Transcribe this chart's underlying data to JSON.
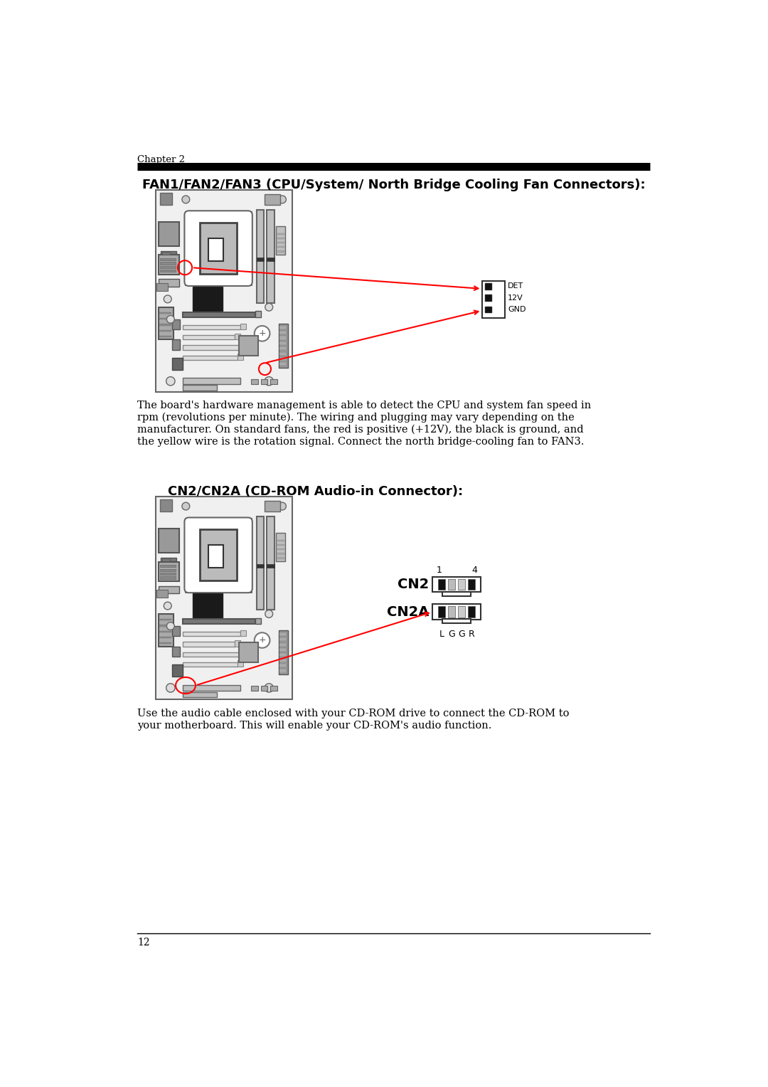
{
  "page_bg": "#ffffff",
  "chapter_label": "Chapter 2",
  "page_number": "12",
  "section1_title": "FAN1/FAN2/FAN3 (CPU/System/ North Bridge Cooling Fan Connectors):",
  "section2_title": "CN2/CN2A (CD-ROM Audio-in Connector):",
  "para1_lines": [
    "The board's hardware management is able to detect the CPU and system fan speed in",
    "rpm (revolutions per minute). The wiring and plugging may vary depending on the",
    "manufacturer. On standard fans, the red is positive (+12V), the black is ground, and",
    "the yellow wire is the rotation signal. Connect the north bridge-cooling fan to FAN3."
  ],
  "para2_lines": [
    "Use the audio cable enclosed with your CD-ROM drive to connect the CD-ROM to",
    "your motherboard. This will enable your CD-ROM's audio function."
  ],
  "fan_connector_labels": [
    "DET",
    "12V",
    "GND"
  ],
  "cn_labels": [
    "L",
    "G",
    "G",
    "R"
  ],
  "board_bg": "#eeeeee",
  "board_edge": "#666666",
  "cpu_socket_bg": "#dddddd",
  "cpu_inner_bg": "#c8c8c8",
  "dark_chip": "#1a1a1a",
  "ram_color": "#b0b0b0",
  "slot_color": "#cccccc",
  "port_dark": "#888888",
  "port_light": "#bbbbbb"
}
